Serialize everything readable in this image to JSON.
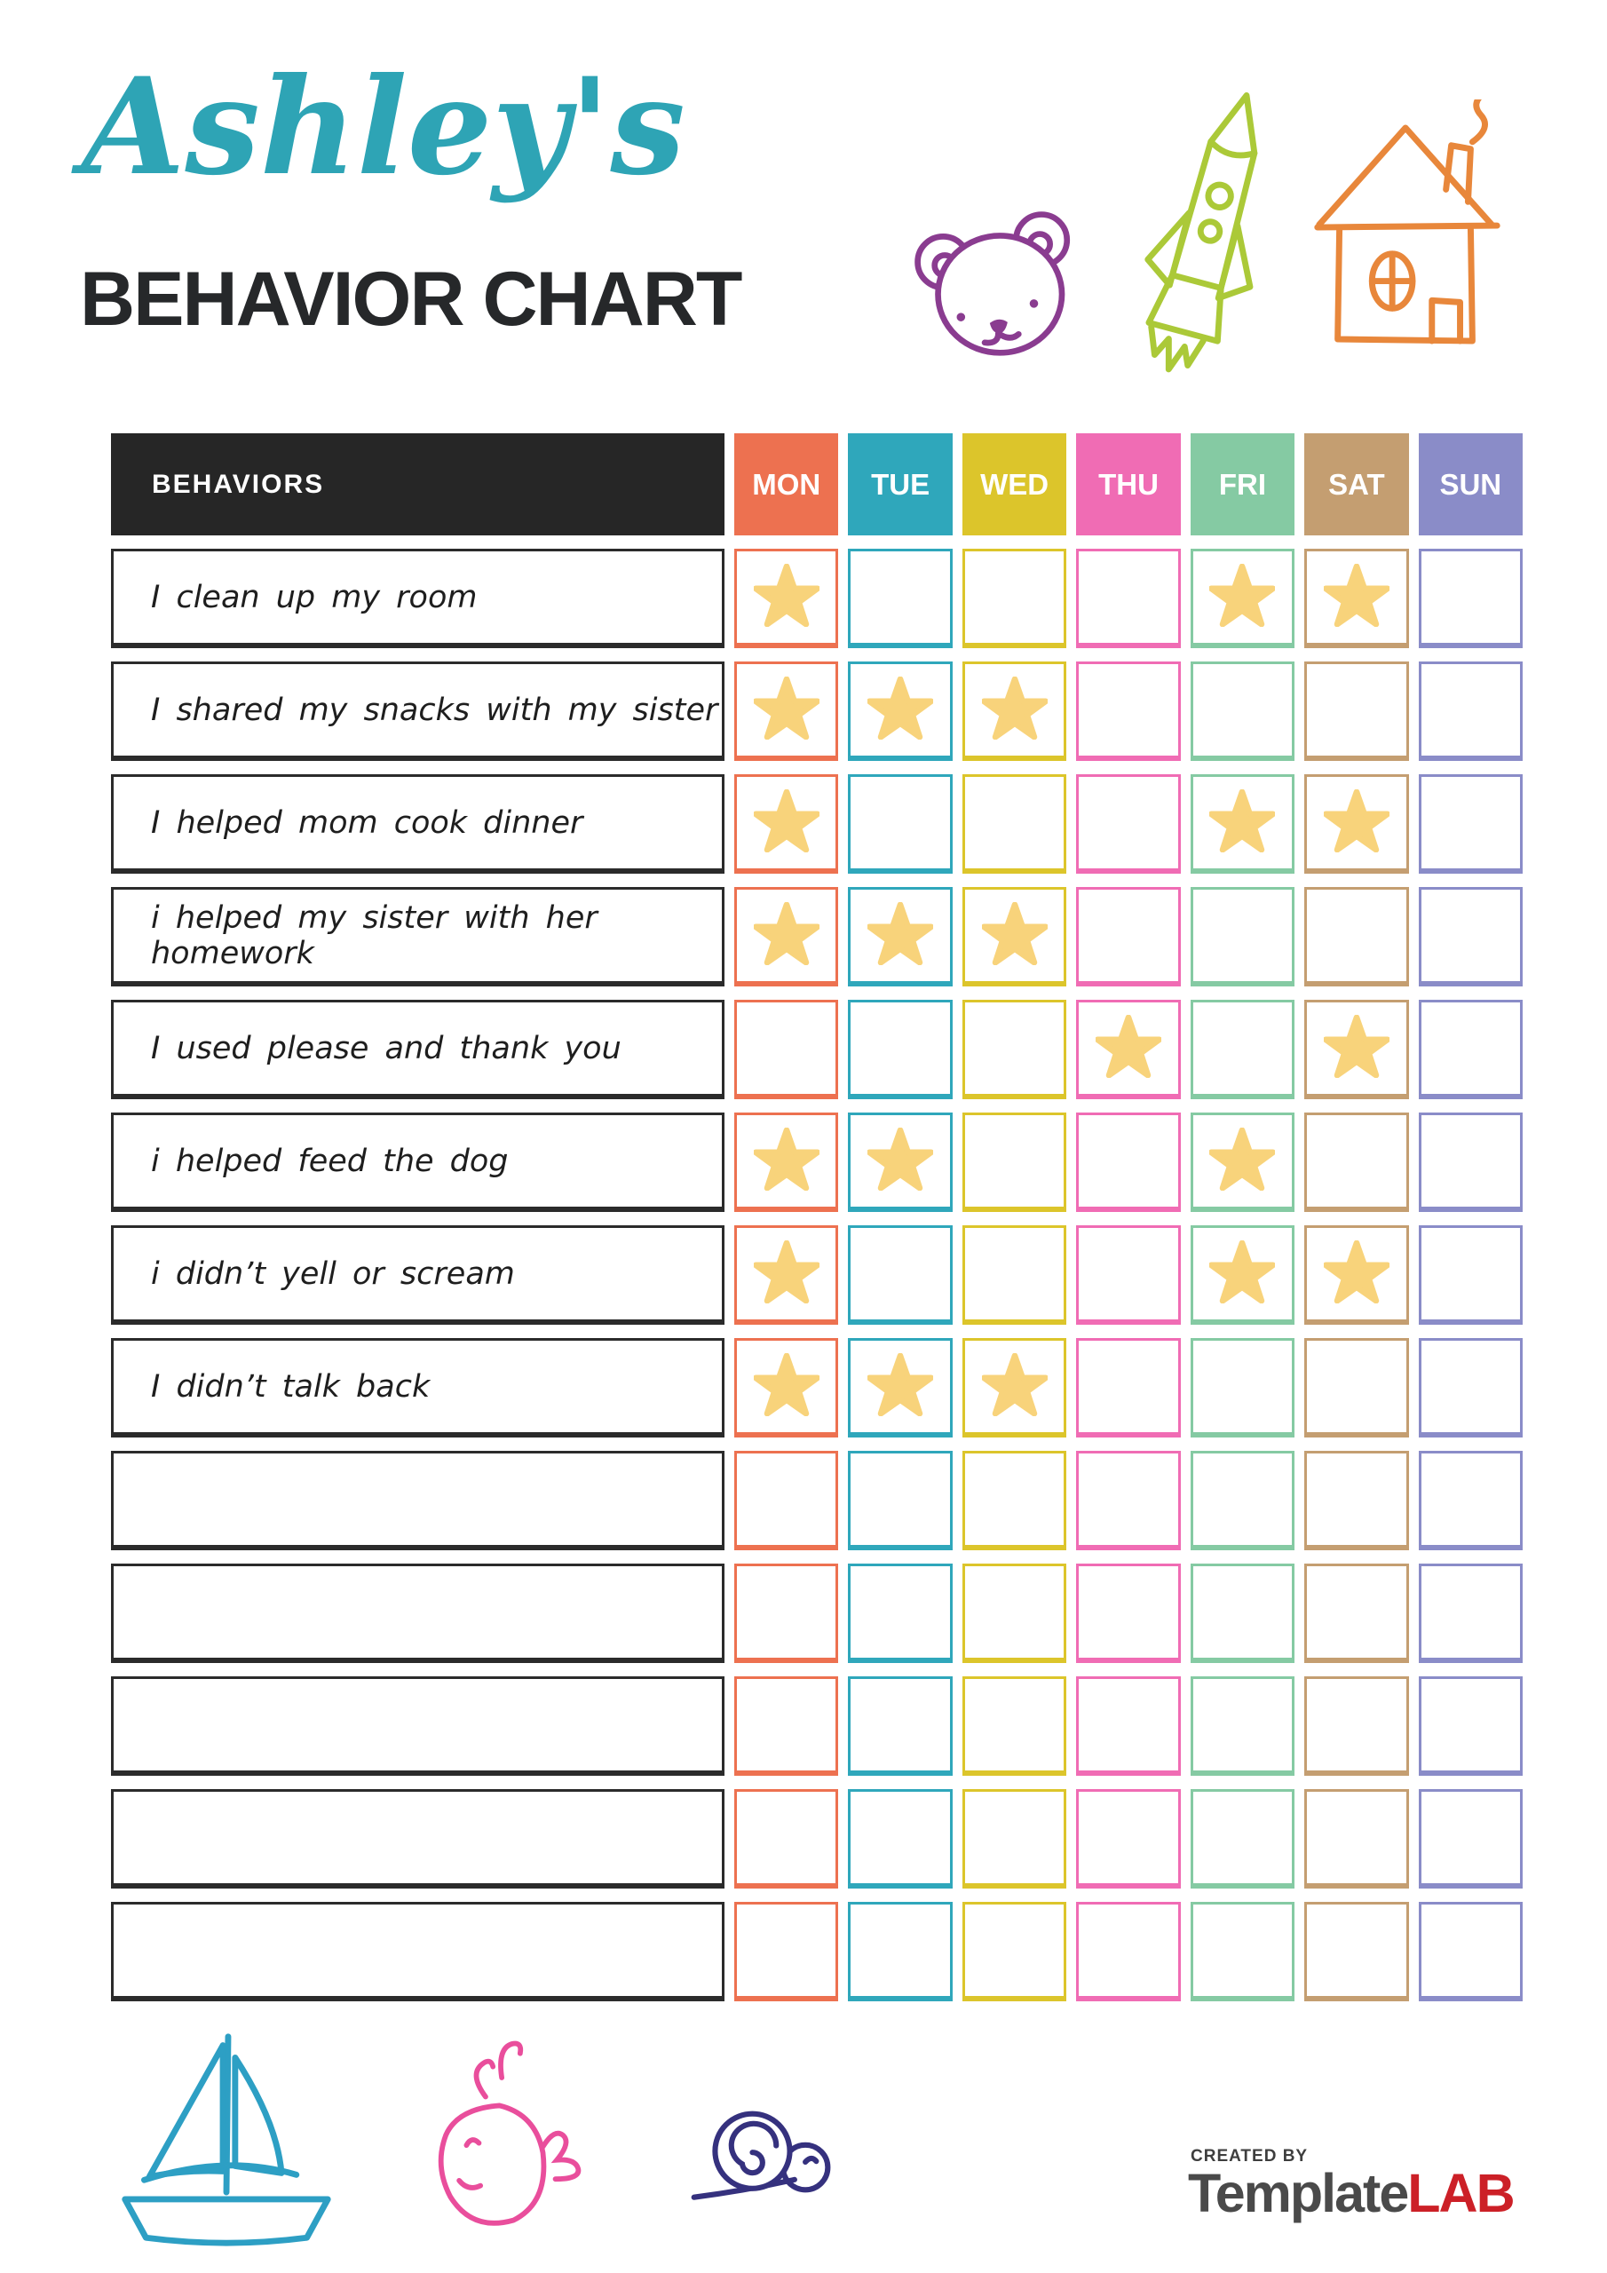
{
  "header": {
    "script_title": "Ashley's",
    "main_title": "BEHAVIOR CHART",
    "script_title_color": "#2EA4B5",
    "main_title_color": "#26282A"
  },
  "decorations": {
    "top": [
      {
        "name": "teddy-bear-doodle",
        "color": "#8A3C90"
      },
      {
        "name": "rocket-doodle",
        "color": "#ABC938"
      },
      {
        "name": "house-doodle",
        "color": "#E8873B"
      }
    ],
    "bottom": [
      {
        "name": "sailboat-doodle",
        "color": "#2D9FC4"
      },
      {
        "name": "whale-doodle",
        "color": "#E94E9C"
      },
      {
        "name": "snail-doodle",
        "color": "#35317E"
      }
    ]
  },
  "table": {
    "behaviors_header": "BEHAVIORS",
    "behaviors_header_bg": "#262626",
    "label_border_color": "#2B2B2B",
    "star_color": "#F8D37B",
    "days": [
      {
        "label": "MON",
        "color": "#ED7150"
      },
      {
        "label": "TUE",
        "color": "#2FA7BB"
      },
      {
        "label": "WED",
        "color": "#DCC52B"
      },
      {
        "label": "THU",
        "color": "#F06CB4"
      },
      {
        "label": "FRI",
        "color": "#85CAA3"
      },
      {
        "label": "SAT",
        "color": "#C49E71"
      },
      {
        "label": "SUN",
        "color": "#8A8CC8"
      }
    ],
    "rows": [
      {
        "label": "I clean up my room",
        "stars": [
          "MON",
          "FRI",
          "SAT"
        ]
      },
      {
        "label": "I shared my snacks with my sister",
        "stars": [
          "MON",
          "TUE",
          "WED"
        ]
      },
      {
        "label": "I helped mom cook dinner",
        "stars": [
          "MON",
          "FRI",
          "SAT"
        ]
      },
      {
        "label": "i helped my sister with her homework",
        "stars": [
          "MON",
          "TUE",
          "WED"
        ]
      },
      {
        "label": "I used please and thank you",
        "stars": [
          "THU",
          "SAT"
        ]
      },
      {
        "label": "i helped feed the dog",
        "stars": [
          "MON",
          "TUE",
          "FRI"
        ]
      },
      {
        "label": "i didn’t yell or scream",
        "stars": [
          "MON",
          "FRI",
          "SAT"
        ]
      },
      {
        "label": "I didn’t talk back",
        "stars": [
          "MON",
          "TUE",
          "WED"
        ]
      },
      {
        "label": "",
        "stars": []
      },
      {
        "label": "",
        "stars": []
      },
      {
        "label": "",
        "stars": []
      },
      {
        "label": "",
        "stars": []
      },
      {
        "label": "",
        "stars": []
      }
    ]
  },
  "footer": {
    "credit_small": "CREATED BY",
    "credit_brand_gray": "Template",
    "credit_brand_red": "LAB",
    "brand_gray_color": "#4A4A4A",
    "brand_red_color": "#CC2027"
  }
}
